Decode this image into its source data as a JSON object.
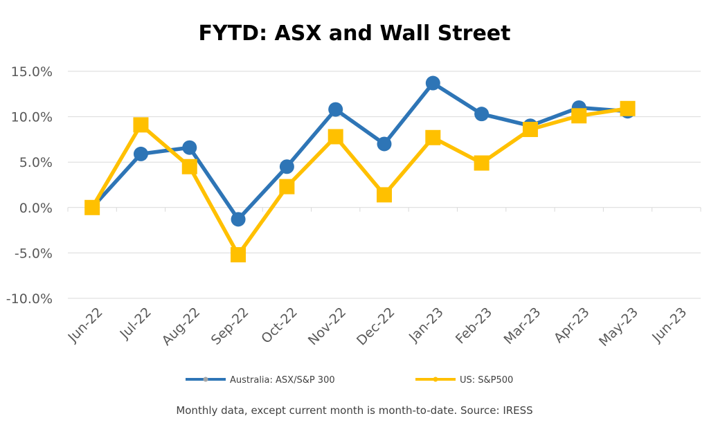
{
  "chart_data": {
    "type": "line",
    "title": "FYTD: ASX and Wall Street",
    "footnote": "Monthly data, except current month is month-to-date.  Source: IRESS",
    "categories": [
      "Jun-22",
      "Jul-22",
      "Aug-22",
      "Sep-22",
      "Oct-22",
      "Nov-22",
      "Dec-22",
      "Jan-23",
      "Feb-23",
      "Mar-23",
      "Apr-23",
      "May-23",
      "Jun-23"
    ],
    "ylim": [
      -0.1,
      0.15
    ],
    "yticks": [
      0.15,
      0.1,
      0.05,
      0.0,
      -0.05,
      -0.1
    ],
    "ytick_labels": [
      "15.0%",
      "10.0%",
      "5.0%",
      "0.0%",
      "-5.0%",
      "-10.0%"
    ],
    "grid": true,
    "legend_position": "bottom",
    "series": [
      {
        "name": "Australia: ASX/S&P 300",
        "color": "#2E75B6",
        "marker": "circle",
        "values": [
          0.0,
          0.059,
          0.066,
          -0.013,
          0.045,
          0.108,
          0.07,
          0.137,
          0.103,
          0.09,
          0.11,
          0.106,
          null
        ]
      },
      {
        "name": "US: S&P500",
        "color": "#FFC000",
        "marker": "square",
        "values": [
          0.0,
          0.091,
          0.045,
          -0.052,
          0.023,
          0.078,
          0.014,
          0.077,
          0.049,
          0.086,
          0.101,
          0.109,
          null
        ]
      }
    ]
  }
}
